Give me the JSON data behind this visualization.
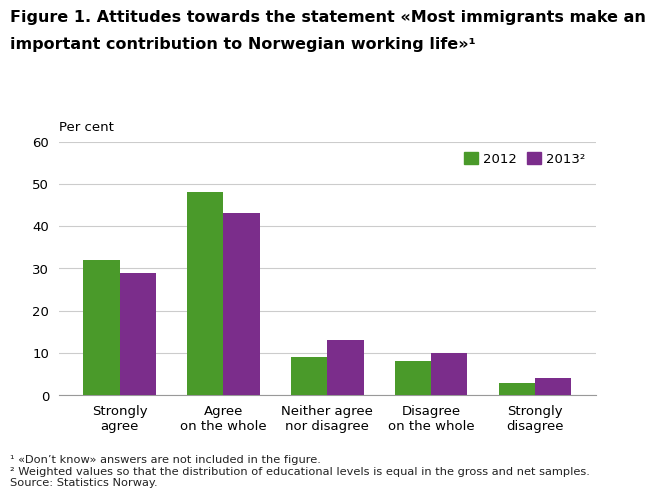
{
  "title_line1": "Figure 1. Attitudes towards the statement «Most immigrants make an",
  "title_line2": "important contribution to Norwegian working life»¹",
  "ylabel": "Per cent",
  "ylim": [
    0,
    60
  ],
  "yticks": [
    0,
    10,
    20,
    30,
    40,
    50,
    60
  ],
  "categories": [
    "Strongly\nagree",
    "Agree\non the whole",
    "Neither agree\nnor disagree",
    "Disagree\non the whole",
    "Strongly\ndisagree"
  ],
  "values_2012": [
    32,
    48,
    9,
    8,
    3
  ],
  "values_2013": [
    29,
    43,
    13,
    10,
    4
  ],
  "color_2012": "#4a9a2a",
  "color_2013": "#7b2d8b",
  "legend_labels": [
    "2012",
    "2013²"
  ],
  "footnote": "¹ «Don’t know» answers are not included in the figure.\n² Weighted values so that the distribution of educational levels is equal in the gross and net samples.\nSource: Statistics Norway.",
  "bar_width": 0.35,
  "background_color": "#ffffff",
  "grid_color": "#cccccc",
  "title_fontsize": 11.5,
  "axis_fontsize": 9.5,
  "tick_fontsize": 9.5,
  "footnote_fontsize": 8.2
}
